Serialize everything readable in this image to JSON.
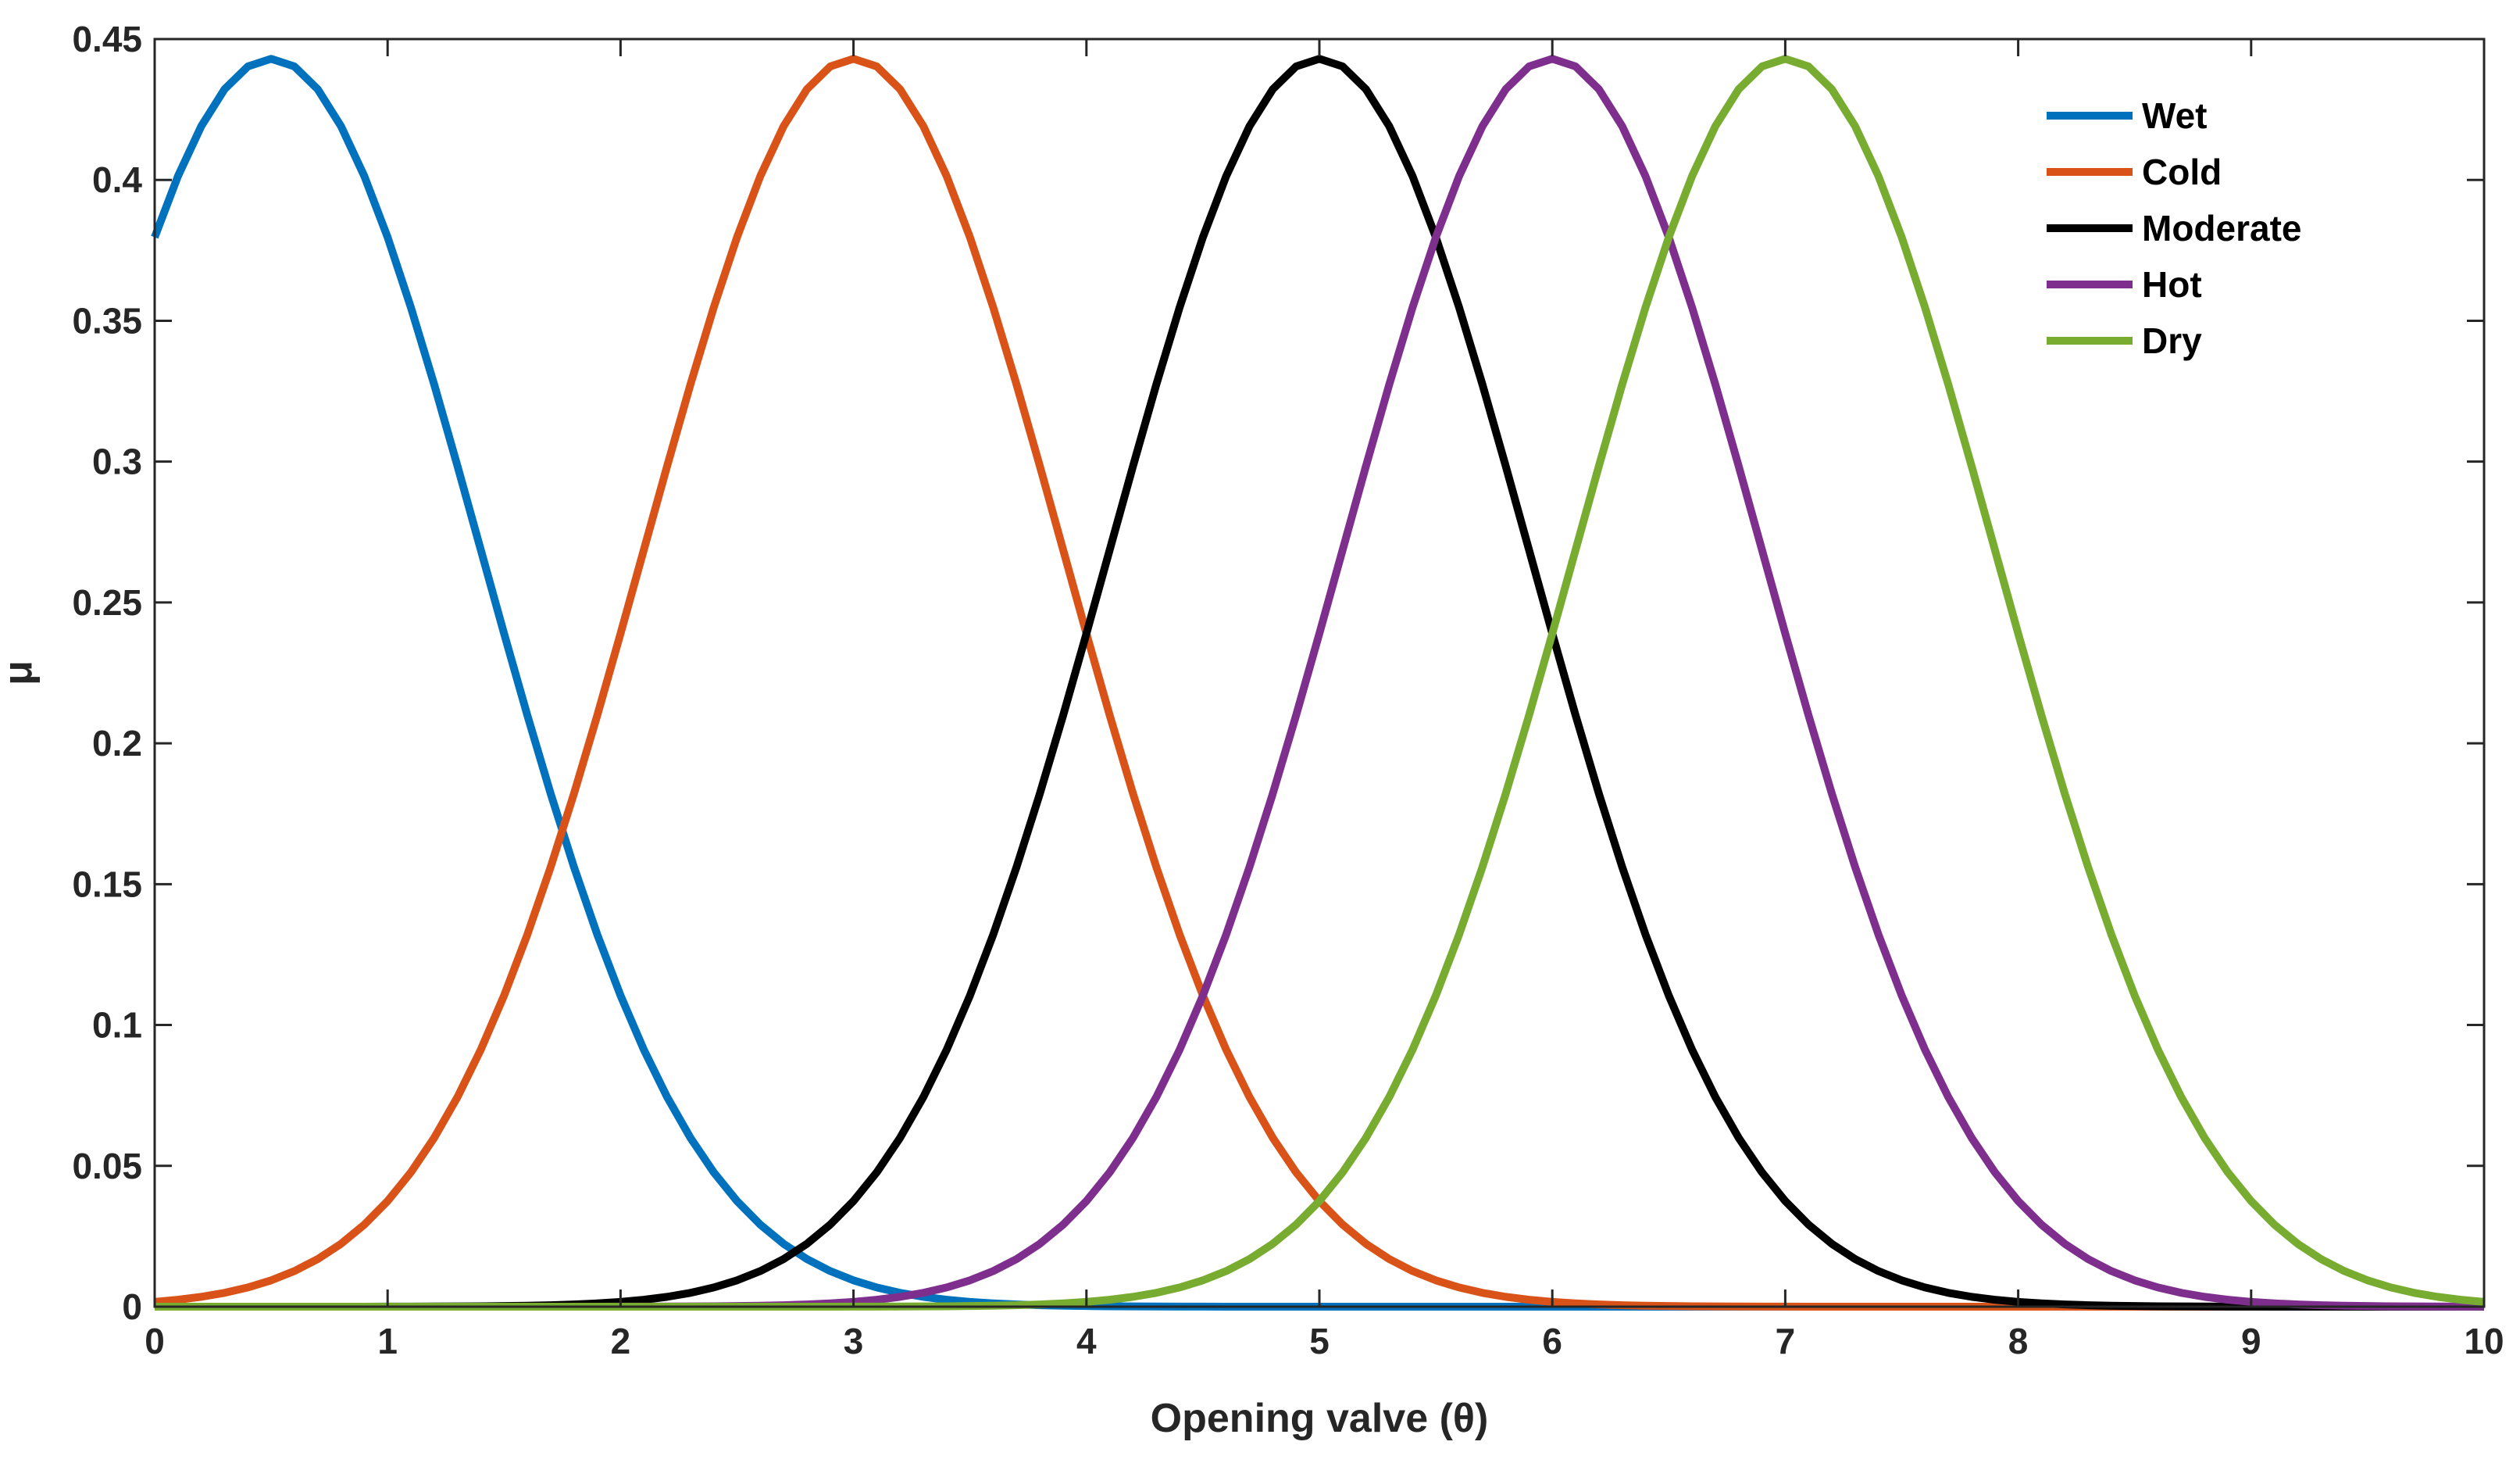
{
  "chart_data": {
    "type": "line",
    "title": "",
    "xlabel": "Opening valve (θ)",
    "ylabel": "μ",
    "xlim": [
      0,
      10
    ],
    "ylim": [
      0,
      0.45
    ],
    "xticks": [
      0,
      1,
      2,
      3,
      4,
      5,
      6,
      7,
      8,
      9,
      10
    ],
    "xtick_labels": [
      "0",
      "1",
      "2",
      "3",
      "4",
      "5",
      "6",
      "7",
      "8",
      "9",
      "10"
    ],
    "yticks": [
      0,
      0.05,
      0.1,
      0.15,
      0.2,
      0.25,
      0.3,
      0.35,
      0.4,
      0.45
    ],
    "ytick_labels": [
      "0",
      "0.05",
      "0.1",
      "0.15",
      "0.2",
      "0.25",
      "0.3",
      "0.35",
      "0.4",
      "0.45"
    ],
    "grid": false,
    "legend_position": "top-right",
    "x_step": 0.1,
    "series": [
      {
        "name": "Wet",
        "color": "#0072BD",
        "peak_x": 0.5,
        "peak_y": 0.443,
        "std": 0.9
      },
      {
        "name": "Cold",
        "color": "#D95319",
        "peak_x": 3,
        "peak_y": 0.443,
        "std": 0.9
      },
      {
        "name": "Moderate",
        "color": "#000000",
        "peak_x": 5,
        "peak_y": 0.443,
        "std": 0.9
      },
      {
        "name": "Hot",
        "color": "#7E2F8E",
        "peak_x": 6,
        "peak_y": 0.443,
        "std": 0.9
      },
      {
        "name": "Dry",
        "color": "#77AC30",
        "peak_x": 7,
        "peak_y": 0.443,
        "std": 0.9
      }
    ]
  }
}
